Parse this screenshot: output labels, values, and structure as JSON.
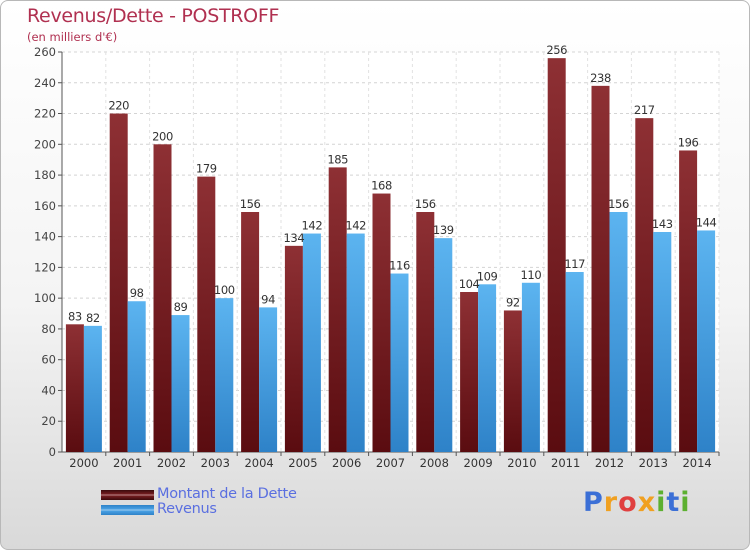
{
  "header": {
    "title": "Revenus/Dette - POSTROFF",
    "subtitle": "(en milliers d'€)"
  },
  "logo": {
    "letters": [
      {
        "char": "P",
        "color": "#3b6fd6"
      },
      {
        "char": "r",
        "color": "#f0a020"
      },
      {
        "char": "o",
        "color": "#e04040"
      },
      {
        "char": "x",
        "color": "#f0a020"
      },
      {
        "char": "i",
        "color": "#5cb030"
      },
      {
        "char": "t",
        "color": "#3b6fd6"
      },
      {
        "char": "i",
        "color": "#5cb030"
      }
    ]
  },
  "colors": {
    "dette": "#7a1e22",
    "revenus": "#4aa3e6",
    "title": "#b03050",
    "legend_text": "#5a6fe0"
  },
  "chart_data": {
    "type": "bar",
    "title": "Revenus/Dette - POSTROFF",
    "subtitle": "(en milliers d'€)",
    "categories": [
      "2000",
      "2001",
      "2002",
      "2003",
      "2004",
      "2005",
      "2006",
      "2007",
      "2008",
      "2009",
      "2010",
      "2011",
      "2012",
      "2013",
      "2014"
    ],
    "series": [
      {
        "name": "Montant de la Dette",
        "values": [
          83,
          220,
          200,
          179,
          156,
          134,
          185,
          168,
          156,
          104,
          92,
          256,
          238,
          217,
          196
        ]
      },
      {
        "name": "Revenus",
        "values": [
          82,
          98,
          89,
          100,
          94,
          142,
          142,
          116,
          139,
          109,
          110,
          117,
          156,
          143,
          144
        ]
      }
    ],
    "ylim": [
      0,
      260
    ],
    "yticks": [
      0,
      20,
      40,
      60,
      80,
      100,
      120,
      140,
      160,
      180,
      200,
      220,
      240,
      260
    ],
    "grid": true,
    "legend_position": "bottom-left"
  }
}
